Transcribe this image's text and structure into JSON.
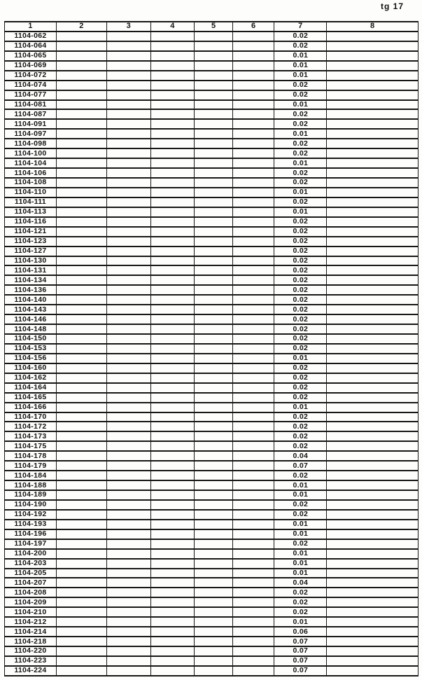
{
  "page": {
    "corner_label": "tg 17"
  },
  "table": {
    "headers": [
      "1",
      "2",
      "3",
      "4",
      "5",
      "6",
      "7",
      "8"
    ],
    "rows": [
      {
        "id": "1104-062",
        "col7": "0.02"
      },
      {
        "id": "1104-064",
        "col7": "0.02"
      },
      {
        "id": "1104-065",
        "col7": "0.01"
      },
      {
        "id": "1104-069",
        "col7": "0.01"
      },
      {
        "id": "1104-072",
        "col7": "0.01"
      },
      {
        "id": "1104-074",
        "col7": "0.02"
      },
      {
        "id": "1104-077",
        "col7": "0.02"
      },
      {
        "id": "1104-081",
        "col7": "0.01"
      },
      {
        "id": "1104-087",
        "col7": "0.02"
      },
      {
        "id": "1104-091",
        "col7": "0.02"
      },
      {
        "id": "1104-097",
        "col7": "0.01"
      },
      {
        "id": "1104-098",
        "col7": "0.02"
      },
      {
        "id": "1104-100",
        "col7": "0.02"
      },
      {
        "id": "1104-104",
        "col7": "0.01"
      },
      {
        "id": "1104-106",
        "col7": "0.02"
      },
      {
        "id": "1104-108",
        "col7": "0.02"
      },
      {
        "id": "1104-110",
        "col7": "0.01"
      },
      {
        "id": "1104-111",
        "col7": "0.02"
      },
      {
        "id": "1104-113",
        "col7": "0.01"
      },
      {
        "id": "1104-116",
        "col7": "0.02"
      },
      {
        "id": "1104-121",
        "col7": "0.02"
      },
      {
        "id": "1104-123",
        "col7": "0.02"
      },
      {
        "id": "1104-127",
        "col7": "0.02"
      },
      {
        "id": "1104-130",
        "col7": "0.02"
      },
      {
        "id": "1104-131",
        "col7": "0.02"
      },
      {
        "id": "1104-134",
        "col7": "0.02"
      },
      {
        "id": "1104-136",
        "col7": "0.02"
      },
      {
        "id": "1104-140",
        "col7": "0.02"
      },
      {
        "id": "1104-143",
        "col7": "0.02"
      },
      {
        "id": "1104-146",
        "col7": "0.02"
      },
      {
        "id": "1104-148",
        "col7": "0.02"
      },
      {
        "id": "1104-150",
        "col7": "0.02"
      },
      {
        "id": "1104-153",
        "col7": "0.02"
      },
      {
        "id": "1104-156",
        "col7": "0.01"
      },
      {
        "id": "1104-160",
        "col7": "0.02"
      },
      {
        "id": "1104-162",
        "col7": "0.02"
      },
      {
        "id": "1104-164",
        "col7": "0.02"
      },
      {
        "id": "1104-165",
        "col7": "0.02"
      },
      {
        "id": "1104-166",
        "col7": "0.01"
      },
      {
        "id": "1104-170",
        "col7": "0.02"
      },
      {
        "id": "1104-172",
        "col7": "0.02"
      },
      {
        "id": "1104-173",
        "col7": "0.02"
      },
      {
        "id": "1104-175",
        "col7": "0.02"
      },
      {
        "id": "1104-178",
        "col7": "0.04"
      },
      {
        "id": "1104-179",
        "col7": "0.07"
      },
      {
        "id": "1104-184",
        "col7": "0.02"
      },
      {
        "id": "1104-188",
        "col7": "0.01"
      },
      {
        "id": "1104-189",
        "col7": "0.01"
      },
      {
        "id": "1104-190",
        "col7": "0.02"
      },
      {
        "id": "1104-192",
        "col7": "0.02"
      },
      {
        "id": "1104-193",
        "col7": "0.01"
      },
      {
        "id": "1104-196",
        "col7": "0.01"
      },
      {
        "id": "1104-197",
        "col7": "0.02"
      },
      {
        "id": "1104-200",
        "col7": "0.01"
      },
      {
        "id": "1104-203",
        "col7": "0.01"
      },
      {
        "id": "1104-205",
        "col7": "0.01"
      },
      {
        "id": "1104-207",
        "col7": "0.04"
      },
      {
        "id": "1104-208",
        "col7": "0.02"
      },
      {
        "id": "1104-209",
        "col7": "0.02"
      },
      {
        "id": "1104-210",
        "col7": "0.02"
      },
      {
        "id": "1104-212",
        "col7": "0.01"
      },
      {
        "id": "1104-214",
        "col7": "0.06"
      },
      {
        "id": "1104-218",
        "col7": "0.07"
      },
      {
        "id": "1104-220",
        "col7": "0.07"
      },
      {
        "id": "1104-223",
        "col7": "0.07"
      },
      {
        "id": "1104-224",
        "col7": "0.07"
      }
    ]
  }
}
